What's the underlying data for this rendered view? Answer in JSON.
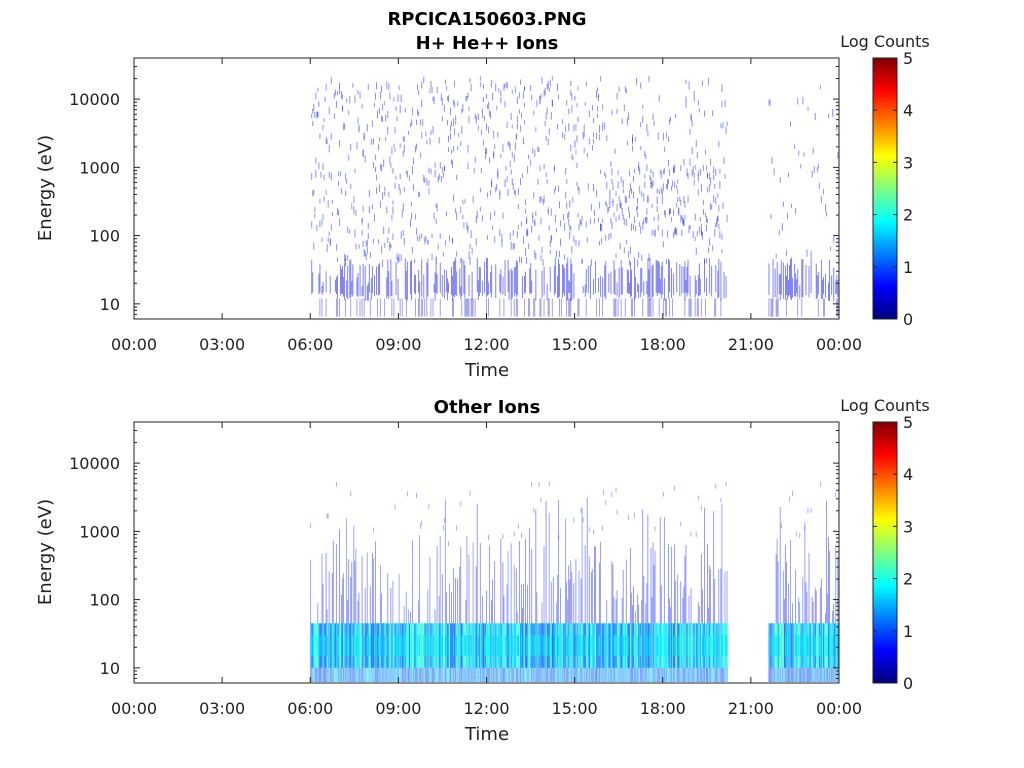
{
  "figure": {
    "title": "RPCICA150603.PNG"
  },
  "colormap": {
    "name": "jet",
    "stops": [
      "#00007f",
      "#0000ff",
      "#007fff",
      "#00ffff",
      "#7fff7f",
      "#ffff00",
      "#ff7f00",
      "#ff0000",
      "#7f0000"
    ]
  },
  "chart_data": [
    {
      "type": "heatmap",
      "title": "H+ He++ Ions",
      "xlabel": "Time",
      "ylabel": "Energy (eV)",
      "x_ticks": [
        "00:00",
        "03:00",
        "06:00",
        "09:00",
        "12:00",
        "15:00",
        "18:00",
        "21:00",
        "00:00"
      ],
      "xlim_hours": [
        0,
        24
      ],
      "y_scale": "log",
      "y_ticks": [
        "10",
        "100",
        "1000",
        "10000"
      ],
      "ylim": [
        6,
        40000
      ],
      "colorbar": {
        "label": "Log Counts",
        "range": [
          0,
          5
        ],
        "ticks": [
          "0",
          "1",
          "2",
          "3",
          "4",
          "5"
        ]
      },
      "data_coverage_hours": [
        [
          6.0,
          20.2
        ],
        [
          21.6,
          24.0
        ]
      ],
      "signal_profile": "sparse weak counts (about 0-0.5 log counts) across 10 eV - 20 keV; denser below about 40 eV; slightly enhanced 100-1000 eV around 17:00-19:00"
    },
    {
      "type": "heatmap",
      "title": "Other Ions",
      "xlabel": "Time",
      "ylabel": "Energy (eV)",
      "x_ticks": [
        "00:00",
        "03:00",
        "06:00",
        "09:00",
        "12:00",
        "15:00",
        "18:00",
        "21:00",
        "00:00"
      ],
      "xlim_hours": [
        0,
        24
      ],
      "y_scale": "log",
      "y_ticks": [
        "10",
        "100",
        "1000",
        "10000"
      ],
      "ylim": [
        6,
        40000
      ],
      "colorbar": {
        "label": "Log Counts",
        "range": [
          0,
          5
        ],
        "ticks": [
          "0",
          "1",
          "2",
          "3",
          "4",
          "5"
        ]
      },
      "data_coverage_hours": [
        [
          6.0,
          20.2
        ],
        [
          21.6,
          24.0
        ]
      ],
      "signal_profile": "strong band 10-45 eV (about 1-2 log counts); vertical streaks up to 100-1000 eV, occasional to about 3000 eV"
    }
  ]
}
